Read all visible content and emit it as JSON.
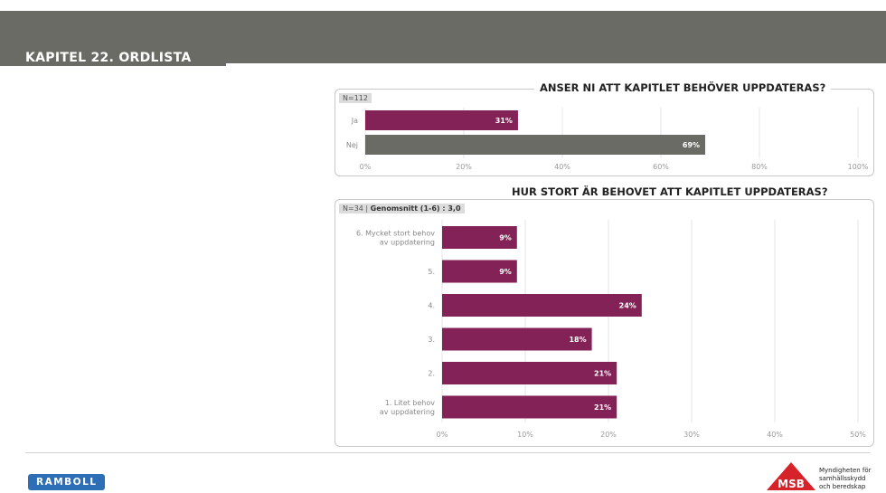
{
  "header": {
    "title": "KAPITEL 22. ORDLISTA"
  },
  "chart_data": [
    {
      "type": "bar",
      "orientation": "horizontal",
      "title": "ANSER NI ATT KAPITLET BEHÖVER UPPDATERAS?",
      "n_label": "N=112",
      "categories": [
        "Ja",
        "Nej"
      ],
      "values": [
        31,
        69
      ],
      "value_labels": [
        "31%",
        "69%"
      ],
      "bar_colors": [
        "#822256",
        "#6b6b66"
      ],
      "xlim": [
        0,
        100
      ],
      "xticks": [
        "0%",
        "20%",
        "40%",
        "60%",
        "80%",
        "100%"
      ],
      "grid": true
    },
    {
      "type": "bar",
      "orientation": "horizontal",
      "title": "HUR STORT ÄR BEHOVET ATT KAPITLET UPPDATERAS?",
      "n_label": "N=34 |",
      "mean_label": "Genomsnitt (1-6) : 3,0",
      "categories": [
        "6. Mycket stort behov av uppdatering",
        "5.",
        "4.",
        "3.",
        "2.",
        "1. Litet behov av uppdatering"
      ],
      "values": [
        9,
        9,
        24,
        18,
        21,
        21
      ],
      "value_labels": [
        "9%",
        "9%",
        "24%",
        "18%",
        "21%",
        "21%"
      ],
      "bar_colors": [
        "#822256"
      ],
      "xlim": [
        0,
        50
      ],
      "xticks": [
        "0%",
        "10%",
        "20%",
        "30%",
        "40%",
        "50%"
      ],
      "grid": true
    }
  ],
  "footer": {
    "left_logo": "RAMBOLL",
    "right_logo": "MSB",
    "right_text": [
      "Myndigheten för",
      "samhällsskydd",
      "och beredskap"
    ]
  },
  "colors": {
    "header_bg": "#6b6b66",
    "bar_primary": "#822256",
    "bar_secondary": "#6b6b66"
  }
}
